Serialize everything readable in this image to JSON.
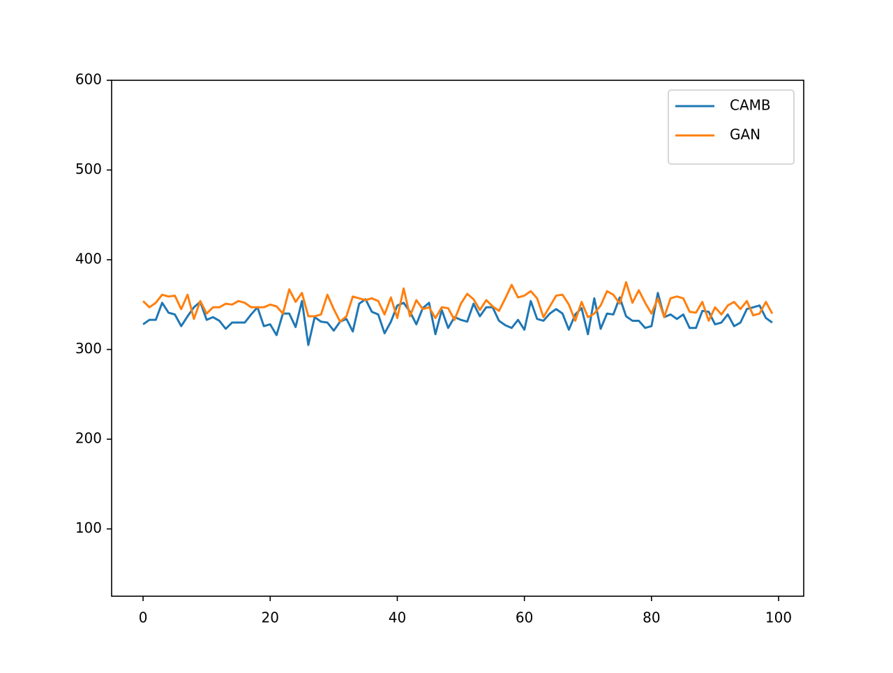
{
  "chart_data": {
    "type": "line",
    "x": [
      0,
      1,
      2,
      3,
      4,
      5,
      6,
      7,
      8,
      9,
      10,
      11,
      12,
      13,
      14,
      15,
      16,
      17,
      18,
      19,
      20,
      21,
      22,
      23,
      24,
      25,
      26,
      27,
      28,
      29,
      30,
      31,
      32,
      33,
      34,
      35,
      36,
      37,
      38,
      39,
      40,
      41,
      42,
      43,
      44,
      45,
      46,
      47,
      48,
      49,
      50,
      51,
      52,
      53,
      54,
      55,
      56,
      57,
      58,
      59,
      60,
      61,
      62,
      63,
      64,
      65,
      66,
      67,
      68,
      69,
      70,
      71,
      72,
      73,
      74,
      75,
      76,
      77,
      78,
      79,
      80,
      81,
      82,
      83,
      84,
      85,
      86,
      87,
      88,
      89,
      90,
      91,
      92,
      93,
      94,
      95,
      96,
      97,
      98,
      99
    ],
    "series": [
      {
        "name": "CAMB",
        "color": "#1f77b4",
        "values": [
          328,
          333,
          333,
          352,
          341,
          339,
          326,
          337,
          347,
          353,
          333,
          336,
          332,
          323,
          330,
          330,
          330,
          339,
          347,
          326,
          328,
          316,
          340,
          340,
          325,
          354,
          305,
          336,
          331,
          330,
          321,
          331,
          334,
          320,
          351,
          356,
          342,
          339,
          318,
          331,
          349,
          352,
          342,
          328,
          346,
          352,
          317,
          344,
          324,
          336,
          333,
          331,
          351,
          337,
          347,
          347,
          332,
          327,
          324,
          333,
          322,
          354,
          334,
          332,
          340,
          345,
          340,
          322,
          339,
          346,
          317,
          357,
          323,
          340,
          339,
          358,
          337,
          332,
          332,
          324,
          326,
          363,
          336,
          339,
          334,
          339,
          324,
          324,
          343,
          342,
          328,
          330,
          339,
          326,
          330,
          345,
          347,
          349,
          335,
          330
        ]
      },
      {
        "name": "GAN",
        "color": "#ff7f0e",
        "values": [
          354,
          347,
          352,
          361,
          359,
          360,
          345,
          361,
          334,
          354,
          340,
          347,
          347,
          351,
          350,
          354,
          352,
          347,
          347,
          347,
          350,
          348,
          340,
          367,
          353,
          363,
          337,
          337,
          339,
          361,
          345,
          331,
          337,
          359,
          357,
          355,
          357,
          354,
          339,
          358,
          335,
          368,
          337,
          355,
          345,
          347,
          335,
          347,
          346,
          333,
          351,
          362,
          356,
          344,
          355,
          348,
          343,
          357,
          372,
          358,
          360,
          365,
          357,
          336,
          348,
          360,
          361,
          350,
          332,
          353,
          336,
          340,
          349,
          365,
          361,
          351,
          375,
          352,
          366,
          352,
          340,
          357,
          336,
          357,
          359,
          357,
          342,
          341,
          353,
          332,
          347,
          339,
          349,
          353,
          345,
          354,
          338,
          340,
          353,
          340
        ]
      }
    ],
    "xlim": [
      -4.95,
      103.95
    ],
    "xticks": [
      0,
      20,
      40,
      60,
      80,
      100
    ],
    "ylim": [
      25,
      600
    ],
    "yticks": [
      100,
      200,
      300,
      400,
      500,
      600
    ],
    "legend": "upper right"
  }
}
